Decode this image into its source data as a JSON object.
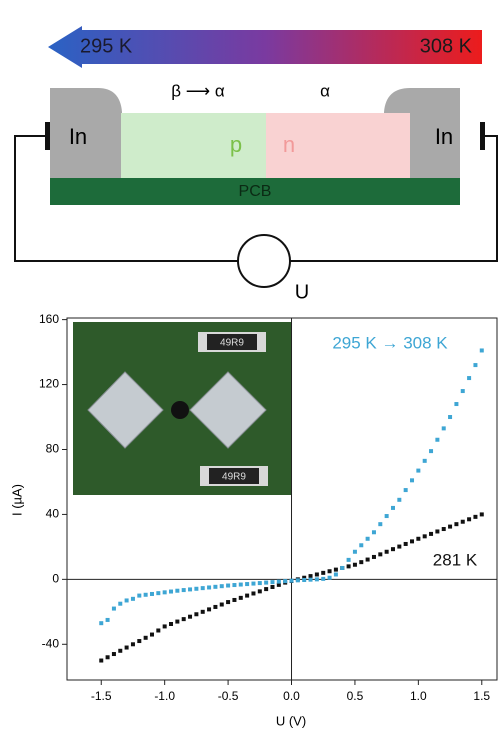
{
  "diagram": {
    "temp_left": "295 K",
    "temp_right": "308 K",
    "phase_left": "β ⟶ α",
    "phase_right": "α",
    "contact_left": "In",
    "contact_right": "In",
    "p_label": "p",
    "n_label": "n",
    "board": "PCB",
    "meter": "U"
  },
  "inset": {
    "resistor_labels": [
      "49R9",
      "49R9"
    ]
  },
  "chart_data": {
    "type": "scatter",
    "xlabel": "U (V)",
    "ylabel": "I (µA)",
    "x": [
      -1.5,
      -1.45,
      -1.4,
      -1.35,
      -1.3,
      -1.25,
      -1.2,
      -1.15,
      -1.1,
      -1.05,
      -1.0,
      -0.95,
      -0.9,
      -0.85,
      -0.8,
      -0.75,
      -0.7,
      -0.65,
      -0.6,
      -0.55,
      -0.5,
      -0.45,
      -0.4,
      -0.35,
      -0.3,
      -0.25,
      -0.2,
      -0.15,
      -0.1,
      -0.05,
      0,
      0.05,
      0.1,
      0.15,
      0.2,
      0.25,
      0.3,
      0.35,
      0.4,
      0.45,
      0.5,
      0.55,
      0.6,
      0.65,
      0.7,
      0.75,
      0.8,
      0.85,
      0.9,
      0.95,
      1.0,
      1.05,
      1.1,
      1.15,
      1.2,
      1.25,
      1.3,
      1.35,
      1.4,
      1.45,
      1.5
    ],
    "series": [
      {
        "name": "281 K",
        "color": "#111111",
        "values": [
          -50,
          -48,
          -46,
          -44,
          -42,
          -40,
          -38,
          -36,
          -34,
          -31.5,
          -29,
          -27.5,
          -26,
          -24.5,
          -23,
          -21.5,
          -20,
          -18.5,
          -17,
          -15.5,
          -14,
          -12.7,
          -11.4,
          -10,
          -8.7,
          -7.4,
          -6,
          -4.7,
          -3.4,
          -2,
          -1,
          0,
          1,
          2,
          3,
          4,
          5,
          6,
          7,
          8,
          9,
          10.6,
          12.2,
          13.8,
          15.4,
          17,
          18.6,
          20.2,
          21.8,
          23.4,
          25,
          26.5,
          28,
          29.5,
          31,
          32.5,
          34,
          35.5,
          37,
          38.5,
          40
        ]
      },
      {
        "name": "295 K → 308 K",
        "color": "#3ea6d4",
        "values": [
          -27,
          -25,
          -18,
          -15,
          -13,
          -12,
          -10,
          -9.5,
          -9,
          -8.5,
          -8,
          -7.5,
          -7,
          -6.6,
          -6.2,
          -5.8,
          -5.4,
          -5,
          -4.6,
          -4.2,
          -3.8,
          -3.5,
          -3.2,
          -2.9,
          -2.6,
          -2.3,
          -2,
          -1.7,
          -1.4,
          -1.1,
          -0.8,
          -0.6,
          -0.4,
          -0.2,
          0,
          0.3,
          1,
          3,
          7,
          12,
          17,
          21,
          25,
          29,
          34,
          39,
          44,
          49,
          55,
          61,
          67,
          73,
          79,
          86,
          93,
          100,
          108,
          116,
          124,
          132,
          141
        ]
      }
    ],
    "xlim": [
      -1.77,
      1.62
    ],
    "ylim": [
      -62,
      161
    ],
    "xticks": [
      -1.5,
      {
        "value": -1.0,
        "label": "-1.0"
      },
      -0.5,
      {
        "value": 0,
        "label": "0.0"
      },
      0.5,
      {
        "value": 1.0,
        "label": "1.0"
      },
      1.5
    ],
    "yticks": [
      -40,
      0,
      40,
      80,
      120,
      160
    ]
  }
}
